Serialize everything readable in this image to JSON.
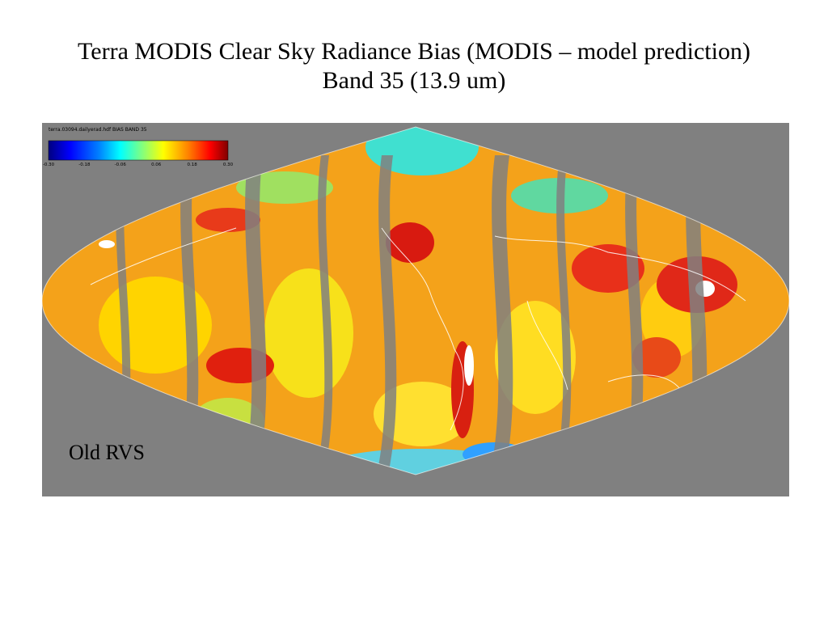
{
  "title": {
    "line1": "Terra MODIS Clear Sky Radiance Bias (MODIS – model prediction)",
    "line2": "Band 35 (13.9 um)"
  },
  "map": {
    "projection": "sinusoidal",
    "background_color": "#808080",
    "file_label": "terra.03094.dailyerad.hdf BIAS BAND 35",
    "annotation": "Old RVS"
  },
  "colorbar": {
    "min": -0.3,
    "max": 0.3,
    "tick_labels": [
      "-0.30",
      "-0.18",
      "-0.06",
      "0.06",
      "0.18",
      "0.30"
    ],
    "colors": [
      "#000080",
      "#0000ff",
      "#0080ff",
      "#00ffff",
      "#80ff80",
      "#ffff00",
      "#ff8000",
      "#ff0000",
      "#800000"
    ]
  }
}
